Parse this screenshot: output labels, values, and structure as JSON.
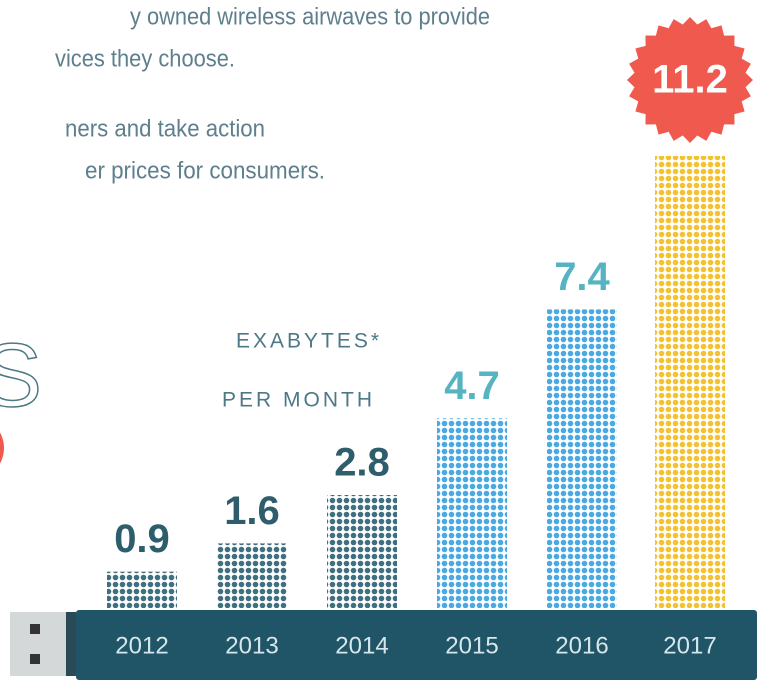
{
  "paragraph": [
    "y owned wireless airwaves to provide",
    "vices they choose.",
    "ners and take action",
    "er prices for consumers."
  ],
  "heading_fragment": "S",
  "chart_data": {
    "type": "dotbar",
    "unit_label": [
      "EXABYTES*",
      "PER MONTH"
    ],
    "categories": [
      "2012",
      "2013",
      "2014",
      "2015",
      "2016",
      "2017"
    ],
    "values": [
      0.9,
      1.6,
      2.8,
      4.7,
      7.4,
      11.2
    ],
    "colors": [
      "#3f6f80",
      "#3f6f80",
      "#3f6f80",
      "#4aa9e2",
      "#4aa9e2",
      "#f4c12f"
    ],
    "label_colors": [
      "#2e5d6c",
      "#2e5d6c",
      "#2e5d6c",
      "#56b4c2",
      "#56b4c2",
      "#ffffff"
    ],
    "highlight_color": "#f05a4e"
  }
}
